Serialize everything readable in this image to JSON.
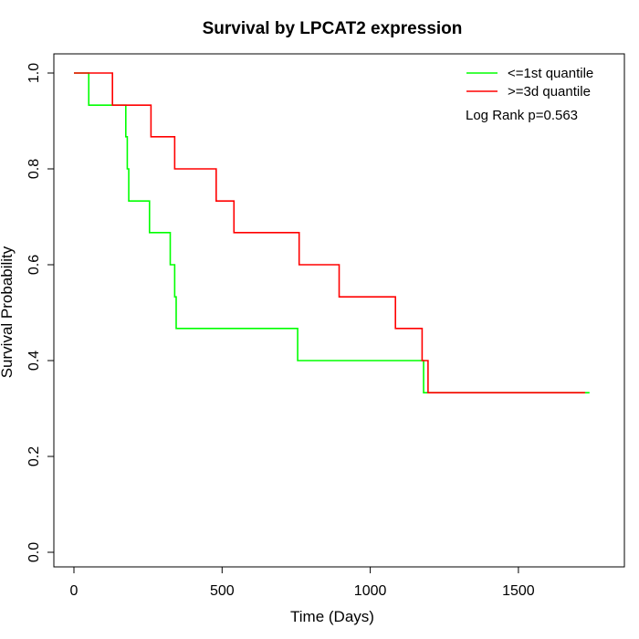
{
  "chart_data": {
    "type": "line",
    "title": "Survival by LPCAT2 expression",
    "xlabel": "Time (Days)",
    "ylabel": "Survival Probability",
    "xlim": [
      0,
      1800
    ],
    "ylim": [
      0,
      1
    ],
    "xticks": [
      0,
      500,
      1000,
      1500
    ],
    "xtick_labels": [
      "0",
      "500",
      "1000",
      "1500"
    ],
    "yticks": [
      0.0,
      0.2,
      0.4,
      0.6,
      0.8,
      1.0
    ],
    "ytick_labels": [
      "0.0",
      "0.2",
      "0.4",
      "0.6",
      "0.8",
      "1.0"
    ],
    "grid": false,
    "legend_position": "top-right",
    "annotation": "Log Rank p=0.563",
    "series": [
      {
        "name": "<=1st quantile",
        "color": "#00ff00",
        "step": true,
        "x": [
          0,
          50,
          175,
          180,
          185,
          255,
          325,
          340,
          345,
          755,
          1180,
          1190,
          1740
        ],
        "y": [
          1.0,
          0.933,
          0.867,
          0.8,
          0.733,
          0.667,
          0.6,
          0.533,
          0.467,
          0.4,
          0.333,
          0.333,
          0.333
        ]
      },
      {
        "name": ">=3d quantile",
        "color": "#ff0000",
        "step": true,
        "x": [
          0,
          130,
          260,
          340,
          480,
          540,
          760,
          895,
          1085,
          1175,
          1195,
          1725
        ],
        "y": [
          1.0,
          0.933,
          0.867,
          0.8,
          0.733,
          0.667,
          0.6,
          0.533,
          0.467,
          0.4,
          0.333,
          0.333
        ]
      }
    ]
  }
}
